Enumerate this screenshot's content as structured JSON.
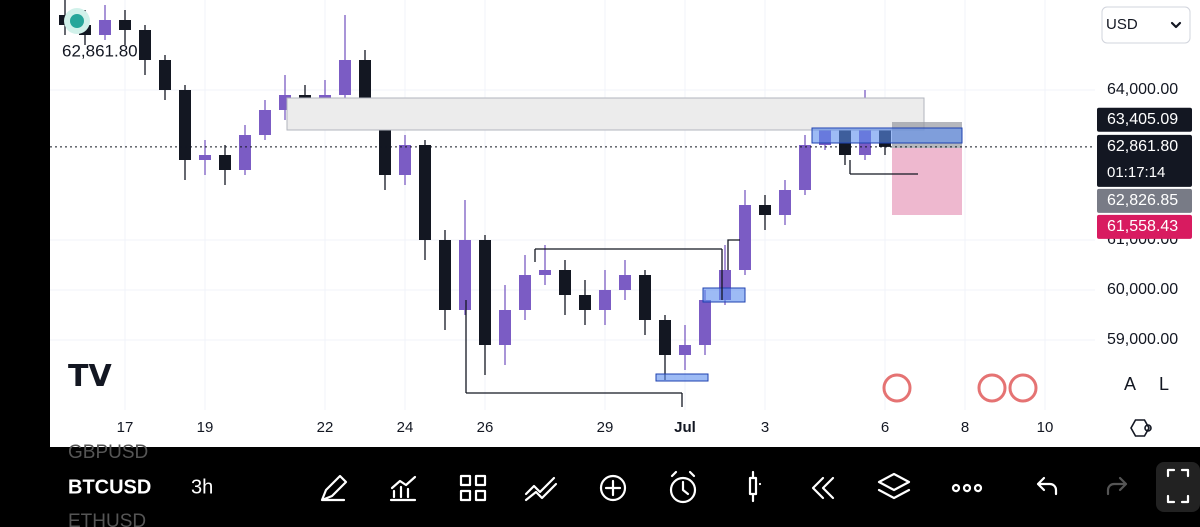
{
  "header": {
    "last_price": "62,861.80",
    "currency": "USD"
  },
  "chart_data": {
    "type": "candlestick",
    "x": [
      15.5,
      16,
      16.5,
      17,
      17.5,
      18,
      18.5,
      19,
      19.5,
      20,
      20.5,
      21,
      21.5,
      22,
      22.5,
      23,
      23.5,
      24,
      24.5,
      25,
      25.5,
      26,
      26.5,
      27,
      27.5,
      28,
      28.5,
      29,
      29.5,
      30,
      30.5,
      31,
      31.5,
      32,
      32.5,
      33,
      33.5,
      34,
      34.5,
      35,
      35.5,
      36
    ],
    "open": [
      65500,
      65300,
      65100,
      65400,
      65200,
      64600,
      64000,
      62600,
      62700,
      62400,
      63100,
      63600,
      63900,
      63700,
      63900,
      64600,
      63600,
      62300,
      62900,
      61000,
      59600,
      61000,
      58900,
      59600,
      60300,
      60400,
      59900,
      59600,
      60000,
      60300,
      59400,
      58700,
      58900,
      59800,
      60400,
      61700,
      61500,
      62000,
      62900,
      63200,
      62700,
      63400
    ],
    "high": [
      65800,
      65600,
      65700,
      65600,
      65300,
      64700,
      64100,
      63000,
      62900,
      63300,
      63800,
      64300,
      64100,
      64200,
      65500,
      64800,
      63700,
      63100,
      63000,
      61200,
      61800,
      61100,
      60100,
      60700,
      60900,
      60600,
      60200,
      60400,
      60600,
      60400,
      59500,
      59300,
      60000,
      60900,
      62000,
      61900,
      62200,
      63100,
      63500,
      63300,
      64000,
      63600
    ],
    "low": [
      65100,
      64900,
      65000,
      64900,
      64300,
      63800,
      62200,
      62300,
      62100,
      62300,
      63000,
      63400,
      63500,
      63500,
      63800,
      63400,
      62000,
      62100,
      60600,
      59200,
      59500,
      58300,
      58500,
      59400,
      60100,
      59500,
      59300,
      59300,
      59800,
      59100,
      58200,
      58400,
      58700,
      59700,
      60300,
      61200,
      61300,
      61900,
      62800,
      62500,
      62600,
      62700
    ],
    "close": [
      65300,
      65100,
      65400,
      65200,
      64600,
      64000,
      62600,
      62700,
      62400,
      63100,
      63600,
      63900,
      63700,
      63900,
      64600,
      63600,
      62300,
      62900,
      61000,
      59600,
      61000,
      58900,
      59600,
      60300,
      60400,
      59900,
      59600,
      60000,
      60300,
      59400,
      58700,
      58900,
      59800,
      60400,
      61700,
      61500,
      62000,
      62900,
      63200,
      62700,
      63400,
      62861.8
    ],
    "up_color": "#7b5cc4",
    "down_color": "#131722",
    "xlim": [
      15.125,
      41.25
    ],
    "ylim": [
      57600,
      65800
    ],
    "xticks": [
      17,
      19,
      22,
      24,
      26,
      29,
      {
        "value": 31,
        "label": "Jul"
      },
      {
        "value": 33,
        "label": "3"
      },
      {
        "value": 36,
        "label": "6"
      },
      {
        "value": 38,
        "label": "8"
      },
      {
        "value": 40,
        "label": "10"
      }
    ],
    "yticks": [
      {
        "value": 64000,
        "label": "64,000.00"
      },
      {
        "value": 61000,
        "label": "61,000.00"
      },
      {
        "value": 60000,
        "label": "60,000.00"
      },
      {
        "value": 59000,
        "label": "59,000.00"
      }
    ],
    "grid": true,
    "price_tags": [
      {
        "value": 63405.09,
        "label": "63,405.09",
        "color": "#131722"
      },
      {
        "value": 62861.8,
        "label": "62,861.80",
        "countdown": "01:17:14",
        "color": "#131722"
      },
      {
        "value": 62826.85,
        "label": "62,826.85",
        "color": "#787b86"
      },
      {
        "value": 61558.43,
        "label": "61,558.43",
        "color": "#d81b60"
      }
    ]
  },
  "scale_buttons": [
    "A",
    "L"
  ],
  "toolbar": {
    "symbol": "BTCUSD",
    "interval": "3h",
    "prev_symbol": "GBPUSD",
    "next_symbol": "ETHUSD"
  }
}
